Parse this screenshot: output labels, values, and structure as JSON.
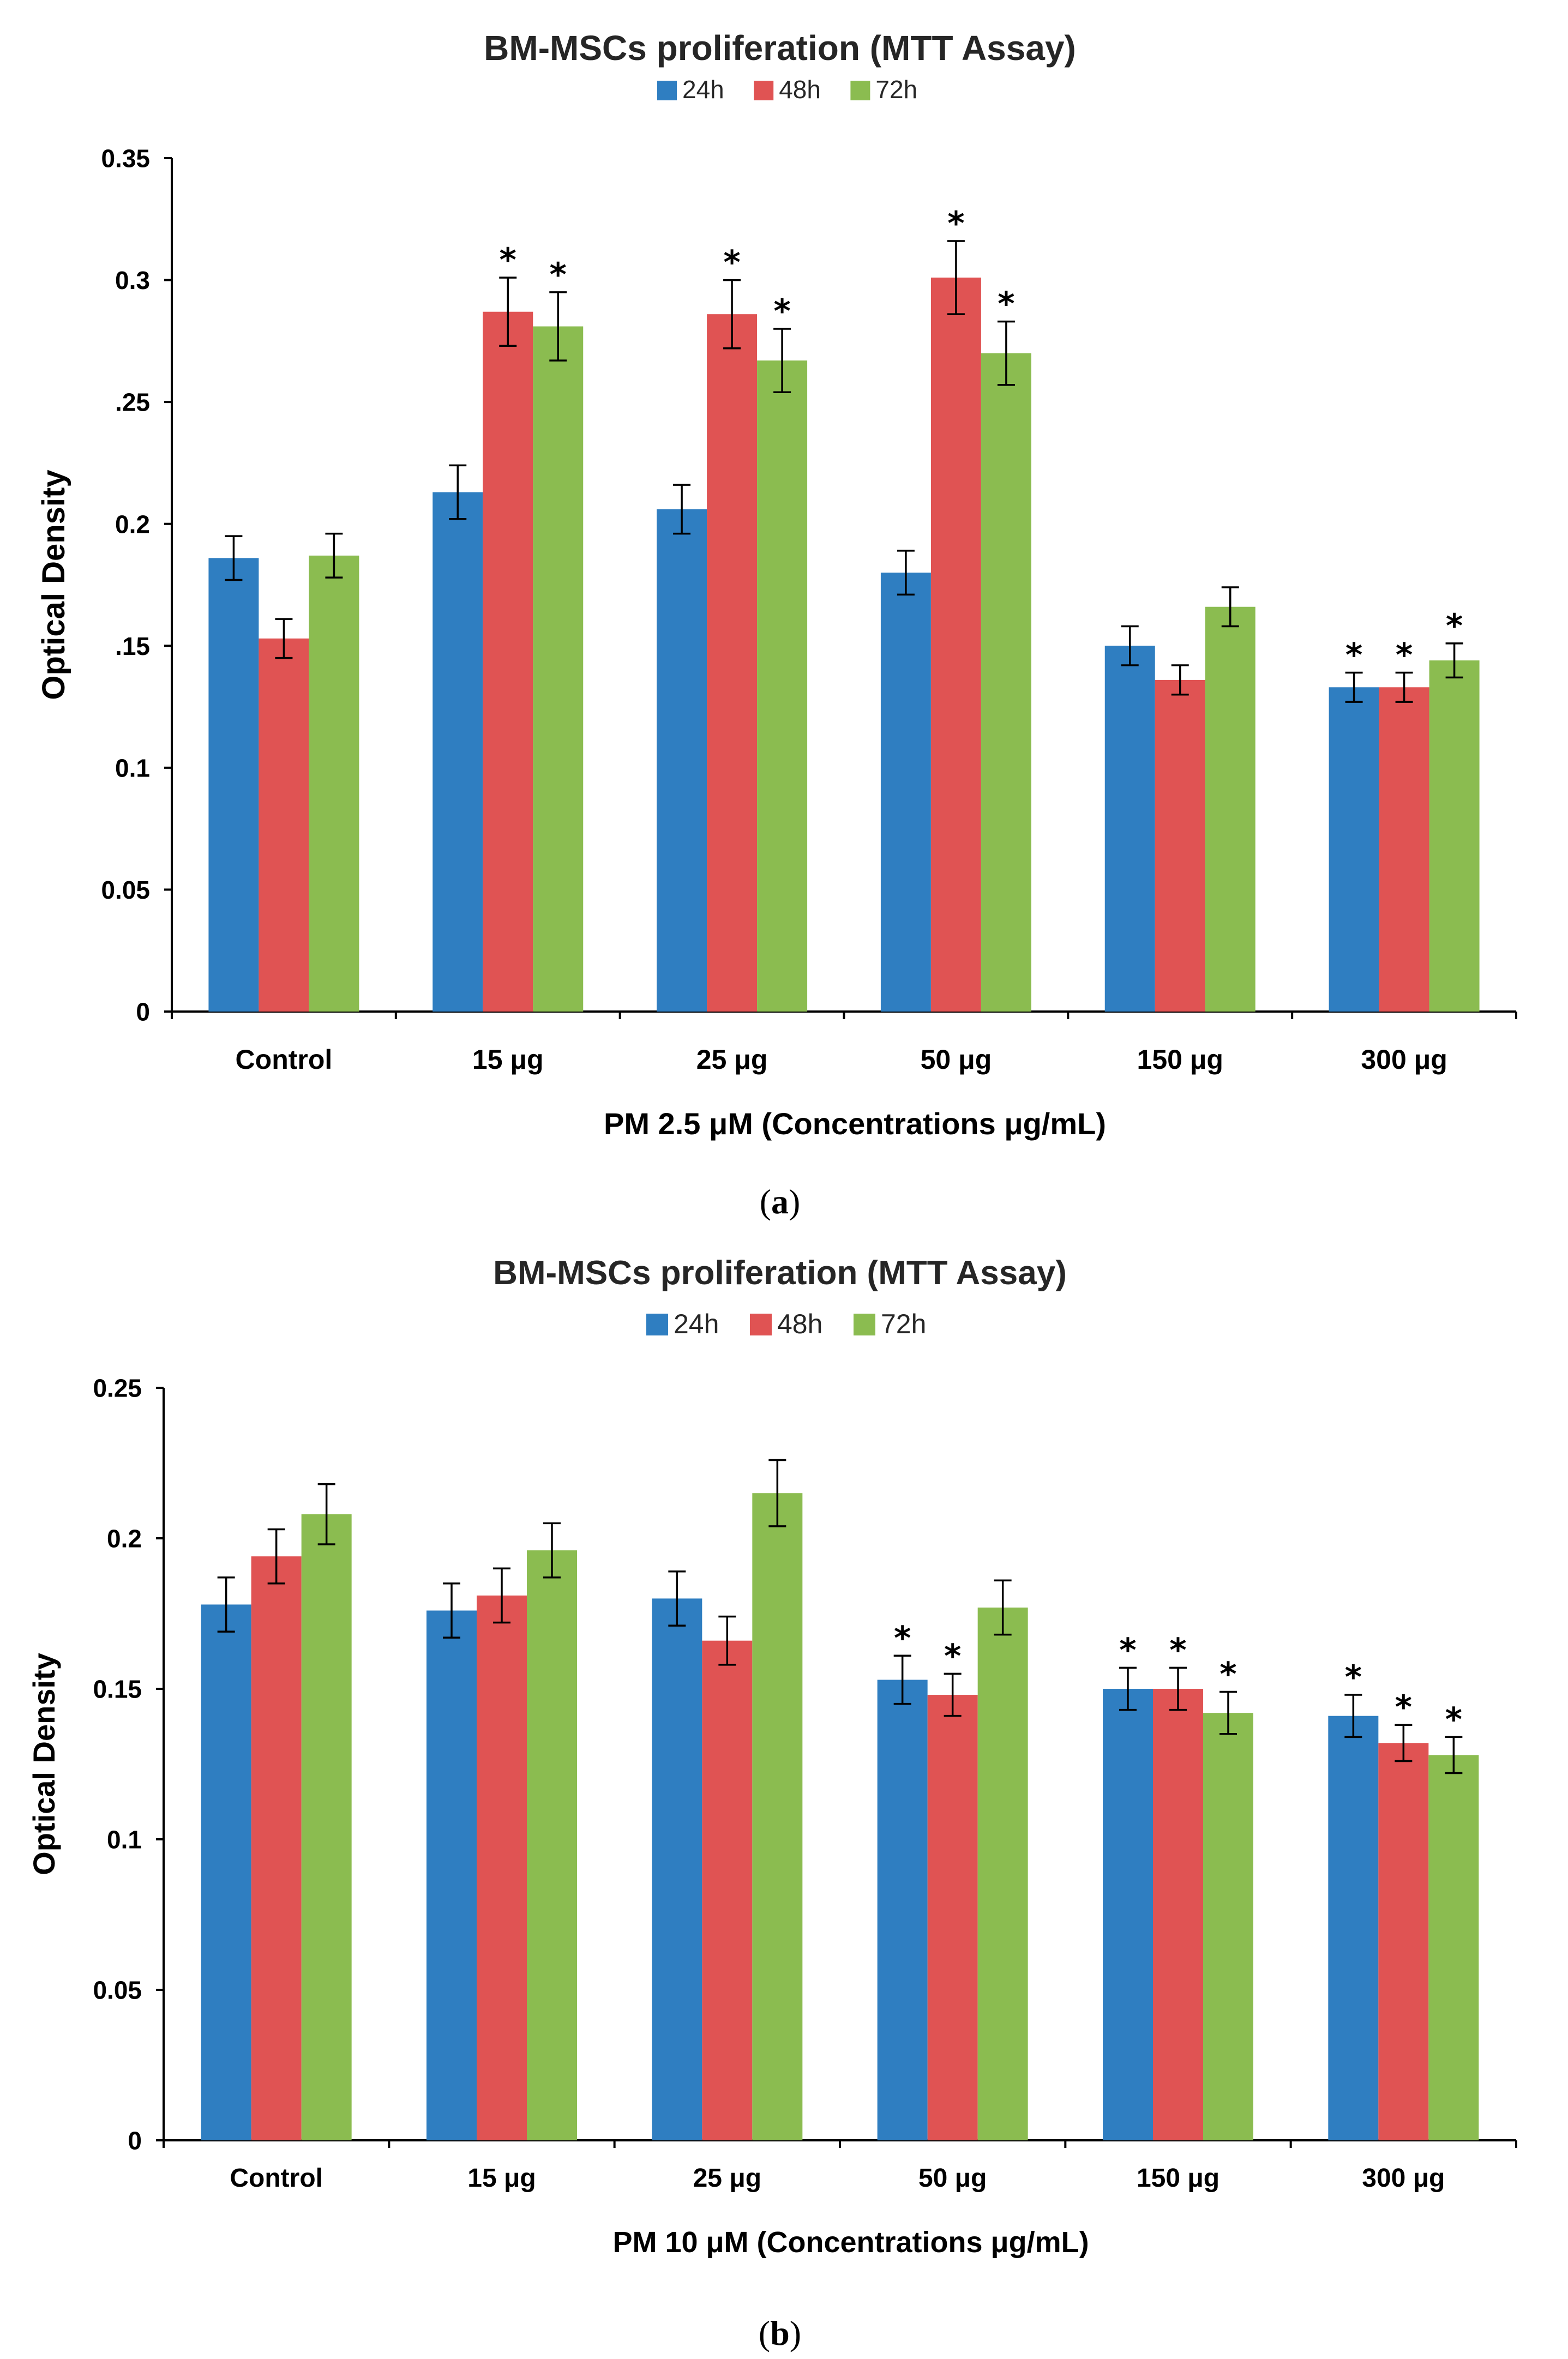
{
  "colors": {
    "24h": "#2f7ec1",
    "48h": "#e05353",
    "72h": "#8bbc50"
  },
  "chart_data": [
    {
      "type": "bar",
      "panel_label": "(a)",
      "panel_letter": "a",
      "title": "BM-MSCs proliferation (MTT Assay)",
      "xlabel": "PM 2.5 μM (Concentrations μg/mL)",
      "ylabel": "Optical Density",
      "ylim": [
        0,
        0.35
      ],
      "yticks": [
        0,
        0.05,
        0.1,
        0.15,
        0.2,
        0.25,
        0.3,
        0.35
      ],
      "ytick_labels": [
        "0",
        "0.05",
        "0.1",
        ".15",
        "0.2",
        ".25",
        "0.3",
        "0.35"
      ],
      "categories": [
        "Control",
        "15 μg",
        "25 μg",
        "50 μg",
        "150 μg",
        "300 μg"
      ],
      "legend": {
        "position": "top-center"
      },
      "series": [
        {
          "name": "24h",
          "values": [
            0.186,
            0.213,
            0.206,
            0.18,
            0.15,
            0.133
          ],
          "errors": [
            0.009,
            0.011,
            0.01,
            0.009,
            0.008,
            0.006
          ],
          "significant": [
            false,
            false,
            false,
            false,
            false,
            true
          ]
        },
        {
          "name": "48h",
          "values": [
            0.153,
            0.287,
            0.286,
            0.301,
            0.136,
            0.133
          ],
          "errors": [
            0.008,
            0.014,
            0.014,
            0.015,
            0.006,
            0.006
          ],
          "significant": [
            false,
            true,
            true,
            true,
            false,
            true
          ]
        },
        {
          "name": "72h",
          "values": [
            0.187,
            0.281,
            0.267,
            0.27,
            0.166,
            0.144
          ],
          "errors": [
            0.009,
            0.014,
            0.013,
            0.013,
            0.008,
            0.007
          ],
          "significant": [
            false,
            true,
            true,
            true,
            false,
            true
          ]
        }
      ]
    },
    {
      "type": "bar",
      "panel_label": "(b)",
      "panel_letter": "b",
      "title": "BM-MSCs proliferation (MTT Assay)",
      "xlabel": "PM 10 μM (Concentrations μg/mL)",
      "ylabel": "Optical Density",
      "ylim": [
        0,
        0.25
      ],
      "yticks": [
        0,
        0.05,
        0.1,
        0.15,
        0.2,
        0.25
      ],
      "ytick_labels": [
        "0",
        "0.05",
        "0.1",
        "0.15",
        "0.2",
        "0.25"
      ],
      "categories": [
        "Control",
        "15 μg",
        "25 μg",
        "50 μg",
        "150 μg",
        "300 μg"
      ],
      "legend": {
        "position": "top-center"
      },
      "series": [
        {
          "name": "24h",
          "values": [
            0.178,
            0.176,
            0.18,
            0.153,
            0.15,
            0.141
          ],
          "errors": [
            0.009,
            0.009,
            0.009,
            0.008,
            0.007,
            0.007
          ],
          "significant": [
            false,
            false,
            false,
            true,
            true,
            true
          ]
        },
        {
          "name": "48h",
          "values": [
            0.194,
            0.181,
            0.166,
            0.148,
            0.15,
            0.132
          ],
          "errors": [
            0.009,
            0.009,
            0.008,
            0.007,
            0.007,
            0.006
          ],
          "significant": [
            false,
            false,
            false,
            true,
            true,
            true
          ]
        },
        {
          "name": "72h",
          "values": [
            0.208,
            0.196,
            0.215,
            0.177,
            0.142,
            0.128
          ],
          "errors": [
            0.01,
            0.009,
            0.011,
            0.009,
            0.007,
            0.006
          ],
          "significant": [
            false,
            false,
            false,
            false,
            true,
            true
          ]
        }
      ]
    }
  ]
}
